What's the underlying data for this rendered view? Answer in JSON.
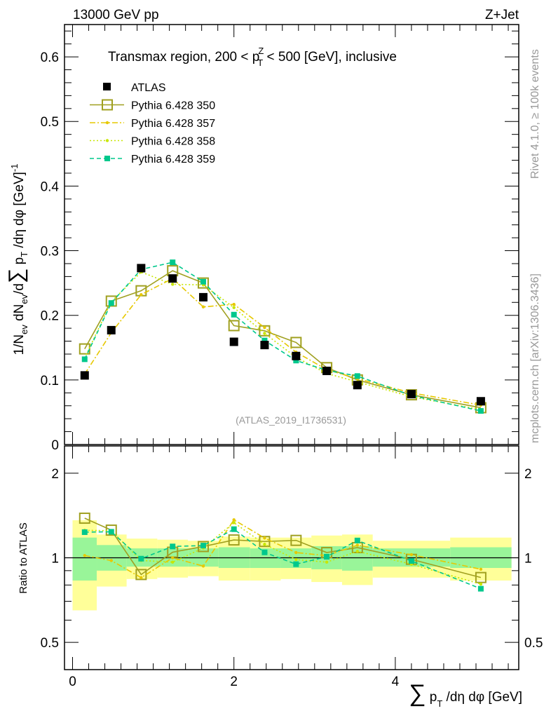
{
  "header": {
    "left": "13000 GeV pp",
    "right": "Z+Jet"
  },
  "side": {
    "rivet": "Rivet 4.1.0, ≥ 100k events",
    "mcplots": "mcplots.cern.ch [arXiv:1306.3436]"
  },
  "watermark": "(ATLAS_2019_I1736531)",
  "chart_data": {
    "type": "line",
    "title": "Transmax region, 200 < p_T^Z < 500 [GeV], inclusive",
    "title_parts": {
      "a": "Transmax region, 200 < p",
      "sub": "T",
      "sup": "Z",
      "b": " < 500 [GeV], inclusive"
    },
    "ylabel": "1/N_ev dN_ev/d∑p_T/dη dφ [GeV]^-1",
    "ylabel_parts": {
      "a": "1/N",
      "s1": "ev",
      "b": " dN",
      "s2": "ev",
      "c": "/d",
      "sum": "∑",
      "d": " p",
      "s3": "T",
      "e": " /dη dφ  [GeV]",
      "sup": "-1"
    },
    "xlabel": "∑ p_T /dη dφ [GeV]",
    "xlabel_parts": {
      "sum": "∑",
      "a": " p",
      "sub": "T",
      "b": " /dη dφ [GeV]"
    },
    "ratio_ylabel": "Ratio to ATLAS",
    "xlim": [
      -0.1,
      5.53
    ],
    "ylim": [
      0,
      0.65
    ],
    "ratio_ylim": [
      0.4,
      2.5
    ],
    "x_ticks": [
      0,
      2,
      4
    ],
    "y_ticks": [
      0,
      0.1,
      0.2,
      0.3,
      0.4,
      0.5,
      0.6
    ],
    "ratio_ticks": [
      0.5,
      1,
      2
    ],
    "legend_position": "top-left",
    "x": [
      0.15,
      0.48,
      0.85,
      1.24,
      1.62,
      2.0,
      2.38,
      2.77,
      3.15,
      3.53,
      4.2,
      5.06
    ],
    "bin_edges": [
      0,
      0.3,
      0.67,
      1.05,
      1.43,
      1.81,
      2.2,
      2.58,
      2.96,
      3.34,
      3.72,
      4.68,
      5.44
    ],
    "data": {
      "name": "ATLAS",
      "color": "#000000",
      "values": [
        0.107,
        0.177,
        0.273,
        0.257,
        0.228,
        0.159,
        0.154,
        0.137,
        0.114,
        0.092,
        0.078,
        0.067
      ],
      "band_total": [
        [
          0.65,
          1.36
        ],
        [
          0.79,
          1.21
        ],
        [
          0.84,
          1.17
        ],
        [
          0.85,
          1.16
        ],
        [
          0.86,
          1.15
        ],
        [
          0.83,
          1.19
        ],
        [
          0.83,
          1.18
        ],
        [
          0.84,
          1.18
        ],
        [
          0.82,
          1.2
        ],
        [
          0.8,
          1.21
        ],
        [
          0.85,
          1.15
        ],
        [
          0.83,
          1.18
        ]
      ],
      "band_stat": [
        [
          0.83,
          1.18
        ],
        [
          0.9,
          1.11
        ],
        [
          0.93,
          1.08
        ],
        [
          0.93,
          1.08
        ],
        [
          0.93,
          1.08
        ],
        [
          0.92,
          1.09
        ],
        [
          0.92,
          1.08
        ],
        [
          0.92,
          1.08
        ],
        [
          0.91,
          1.1
        ],
        [
          0.9,
          1.1
        ],
        [
          0.93,
          1.08
        ],
        [
          0.92,
          1.09
        ]
      ]
    },
    "series": [
      {
        "name": "Pythia 6.428 350",
        "color": "#a0a020",
        "dash": "",
        "marker": "open-square",
        "values": [
          0.148,
          0.222,
          0.238,
          0.269,
          0.25,
          0.184,
          0.176,
          0.158,
          0.119,
          0.1,
          0.077,
          0.057
        ]
      },
      {
        "name": "Pythia 6.428 357",
        "color": "#e6c800",
        "dash": "8,3,2,3",
        "marker": "dot",
        "values": [
          0.109,
          0.173,
          0.232,
          0.257,
          0.213,
          0.217,
          0.181,
          0.143,
          0.116,
          0.102,
          0.08,
          0.061
        ]
      },
      {
        "name": "Pythia 6.428 358",
        "color": "#c8e600",
        "dash": "2,3",
        "marker": "dot",
        "values": [
          0.134,
          0.221,
          0.267,
          0.248,
          0.247,
          0.212,
          0.172,
          0.135,
          0.11,
          0.097,
          0.074,
          0.054
        ]
      },
      {
        "name": "Pythia 6.428 359",
        "color": "#00c88c",
        "dash": "6,4",
        "marker": "square",
        "values": [
          0.132,
          0.219,
          0.271,
          0.282,
          0.252,
          0.201,
          0.161,
          0.13,
          0.115,
          0.106,
          0.076,
          0.052
        ]
      }
    ]
  }
}
